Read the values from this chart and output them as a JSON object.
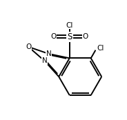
{
  "background_color": "#ffffff",
  "line_color": "#000000",
  "line_width": 1.4,
  "font_size": 7.5,
  "fig_width": 1.84,
  "fig_height": 1.74,
  "dpi": 100,
  "xlim": [
    -4.5,
    5.0
  ],
  "ylim": [
    -4.0,
    4.5
  ]
}
